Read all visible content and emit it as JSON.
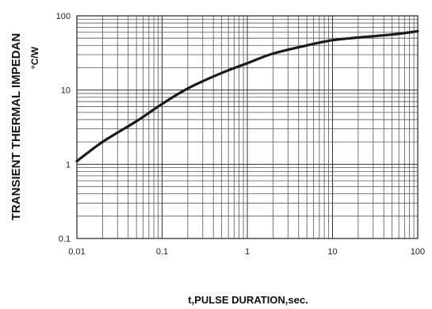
{
  "chart_data": {
    "type": "line",
    "xscale": "log",
    "yscale": "log",
    "xlim": [
      0.01,
      100
    ],
    "ylim": [
      0.1,
      100
    ],
    "grid": true,
    "xlabel": "t,PULSE DURATION,sec.",
    "ylabel": "TRANSIENT THERMAL IMPEDAN",
    "ylabel_unit": "°C/W",
    "xticks": [
      "0.01",
      "0.1",
      "1",
      "10",
      "100"
    ],
    "yticks": [
      "0.1",
      "1",
      "10",
      "100"
    ],
    "series": [
      {
        "x": [
          0.01,
          0.02,
          0.05,
          0.1,
          0.2,
          0.5,
          1,
          2,
          5,
          10,
          20,
          50,
          100
        ],
        "y": [
          1.1,
          2.0,
          3.8,
          6.5,
          10.5,
          17.0,
          23.0,
          31.0,
          40.0,
          47.0,
          51.0,
          56.0,
          62.0
        ],
        "color": "#1a1a1a"
      }
    ]
  }
}
